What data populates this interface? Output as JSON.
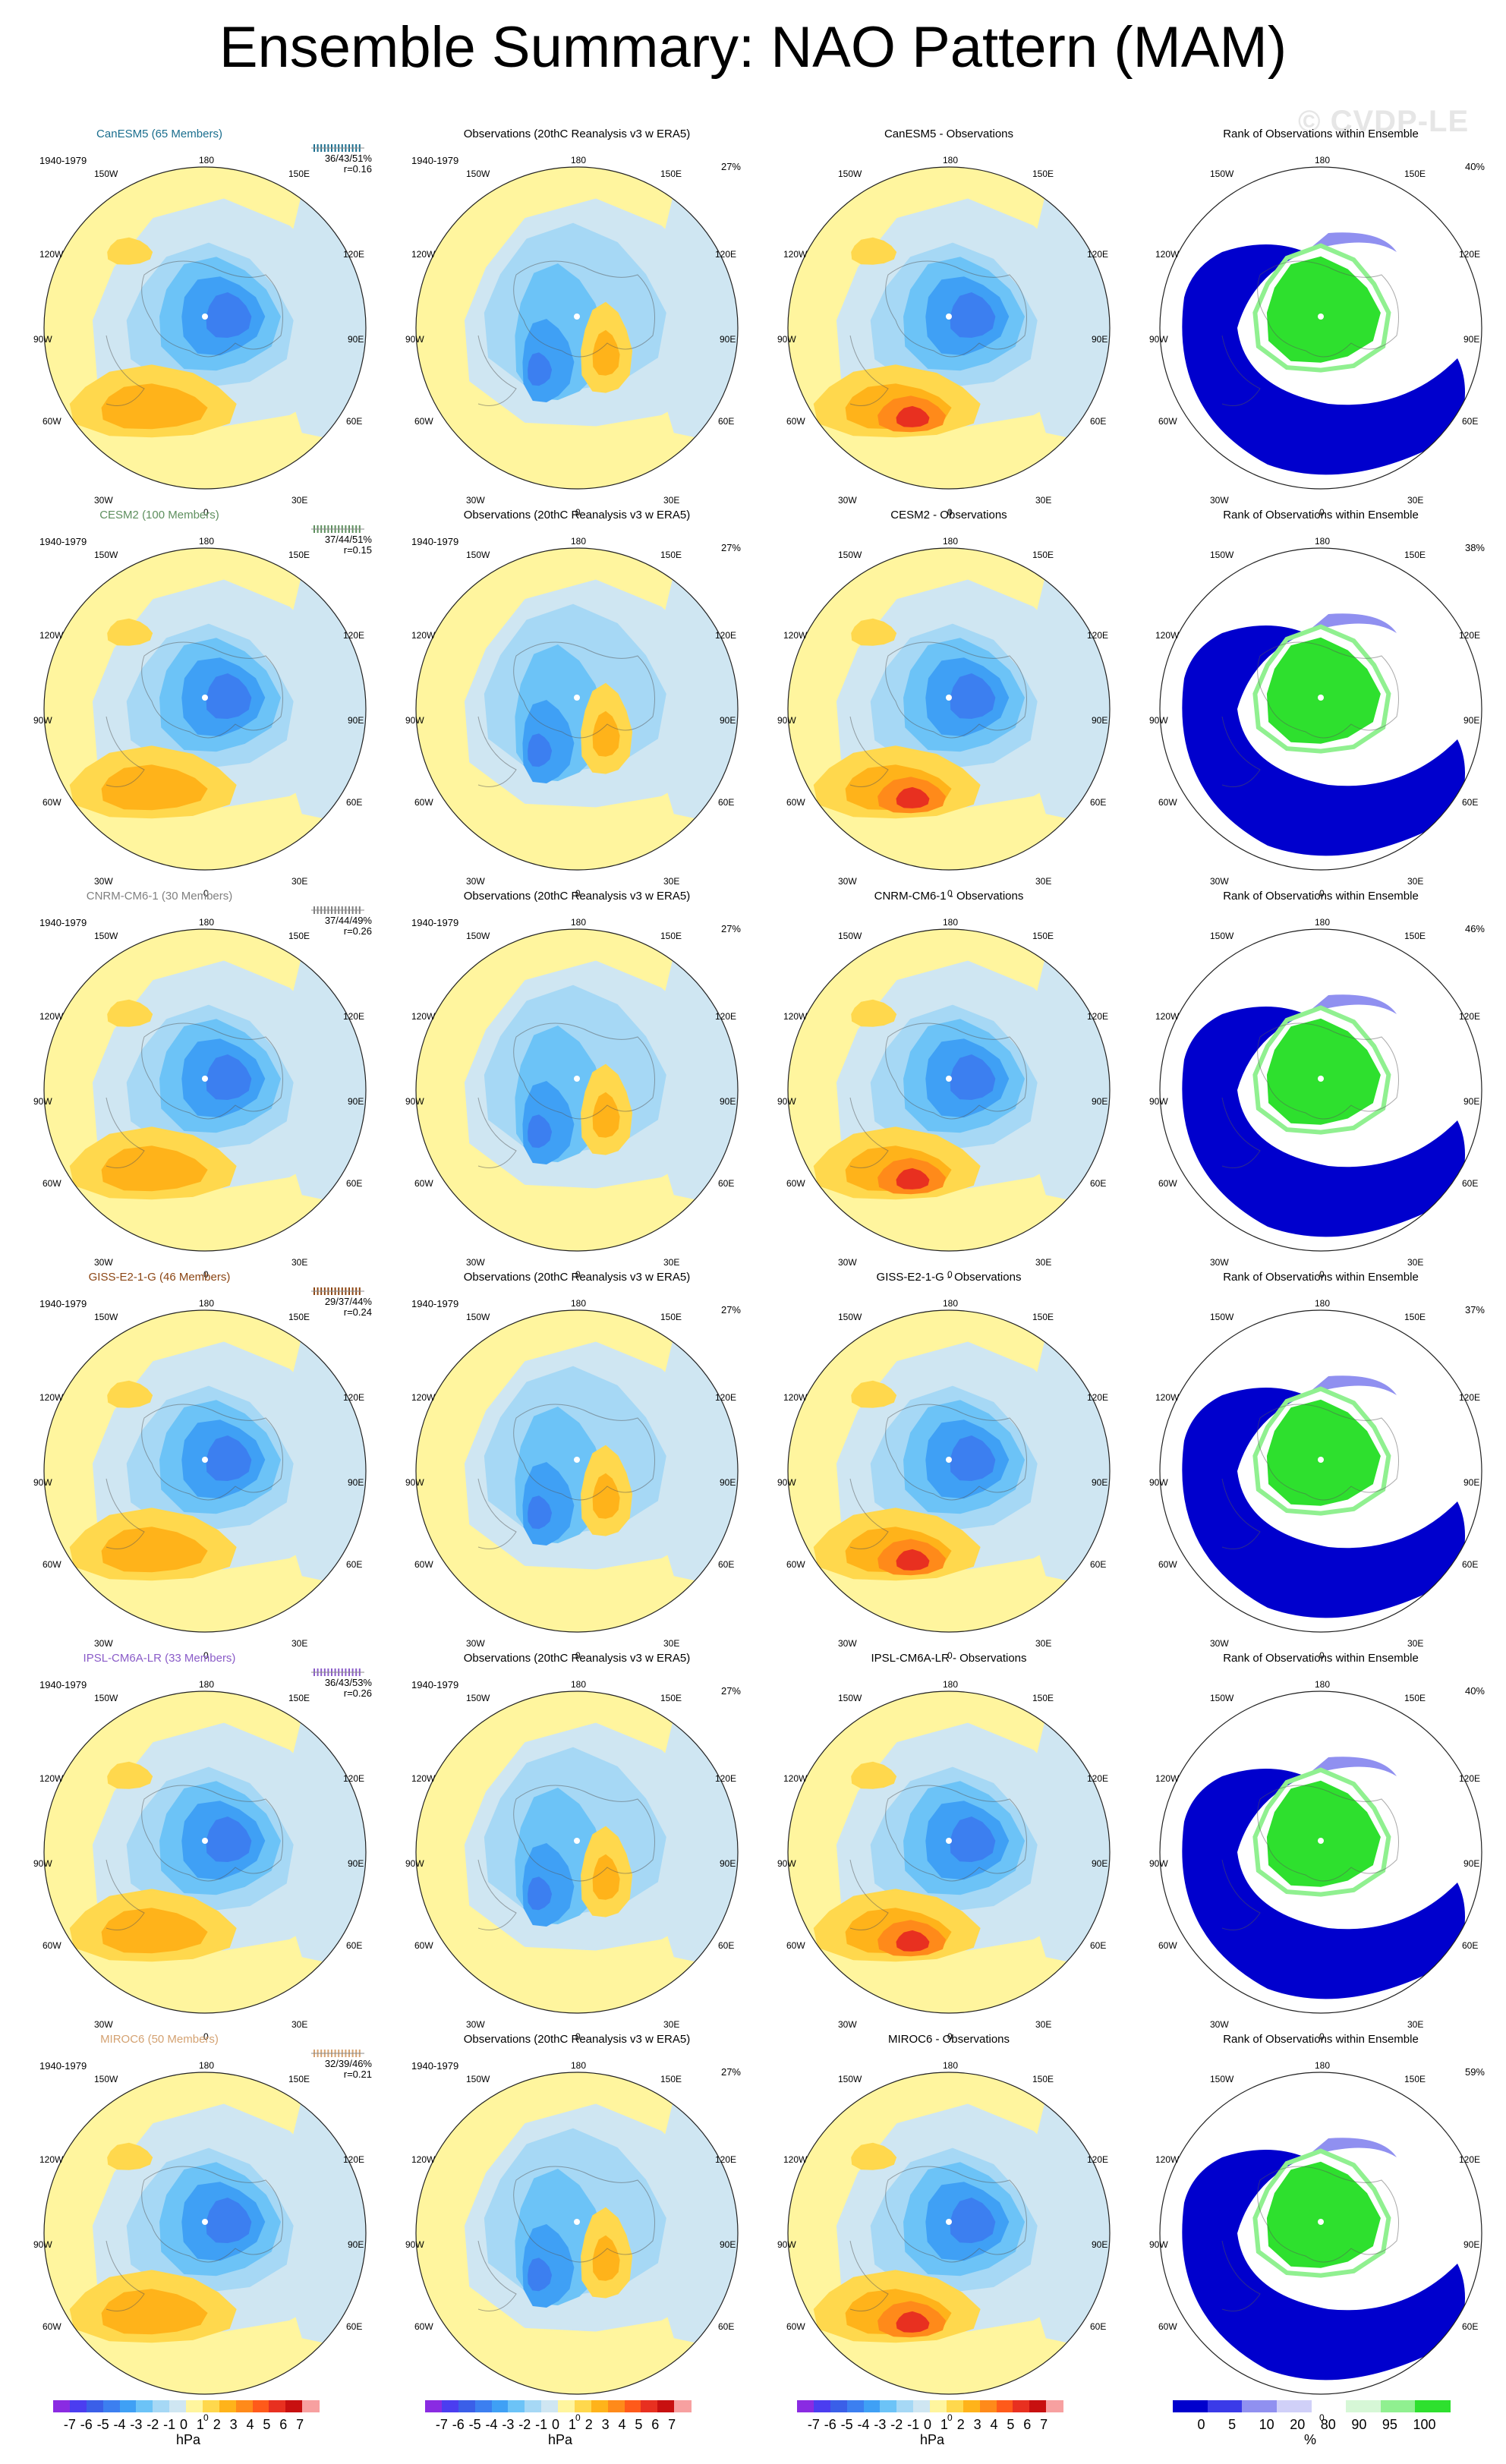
{
  "title": "Ensemble Summary: NAO Pattern (MAM)",
  "watermark": "© CVDP-LE",
  "common": {
    "period": "1940-1979",
    "obs_title": "Observations (20thC Reanalysis v3 w ERA5)",
    "rank_title": "Rank of Observations within Ensemble",
    "obs_pct": "27%"
  },
  "rows": [
    {
      "model_title": "CanESM5 (65 Members)",
      "diff_title": "CanESM5 - Observations",
      "stats1": "36/43/51%",
      "stats2": "r=0.16",
      "rank_pct": "40%",
      "color": "#1a6e8e"
    },
    {
      "model_title": "CESM2 (100 Members)",
      "diff_title": "CESM2 - Observations",
      "stats1": "37/44/51%",
      "stats2": "r=0.15",
      "rank_pct": "38%",
      "color": "#5e8f5e"
    },
    {
      "model_title": "CNRM-CM6-1 (30 Members)",
      "diff_title": "CNRM-CM6-1 - Observations",
      "stats1": "37/44/49%",
      "stats2": "r=0.26",
      "rank_pct": "46%",
      "color": "#808080"
    },
    {
      "model_title": "GISS-E2-1-G (46 Members)",
      "diff_title": "GISS-E2-1-G - Observations",
      "stats1": "29/37/44%",
      "stats2": "r=0.24",
      "rank_pct": "37%",
      "color": "#8b4513"
    },
    {
      "model_title": "IPSL-CM6A-LR (33 Members)",
      "diff_title": "IPSL-CM6A-LR - Observations",
      "stats1": "36/43/53%",
      "stats2": "r=0.26",
      "rank_pct": "40%",
      "color": "#8a5cc8"
    },
    {
      "model_title": "MIROC6 (50 Members)",
      "diff_title": "MIROC6 - Observations",
      "stats1": "32/39/46%",
      "stats2": "r=0.21",
      "rank_pct": "59%",
      "color": "#d4a272"
    }
  ],
  "lon_labels": {
    "top": "180",
    "bottom": "0",
    "left": "90W",
    "right": "90E",
    "tl1": "150W",
    "tr1": "150E",
    "tl2": "120W",
    "tr2": "120E",
    "bl1": "60W",
    "br1": "60E",
    "bl2": "30W",
    "br2": "30E"
  },
  "colorbar_hpa": {
    "labels": [
      "-7",
      "-6",
      "-5",
      "-4",
      "-3",
      "-2",
      "-1",
      "0",
      "1",
      "2",
      "3",
      "4",
      "5",
      "6",
      "7"
    ],
    "unit": "hPa",
    "colors": [
      "#8a2be2",
      "#4b3df0",
      "#3a5fe8",
      "#3c7ff0",
      "#3fa0f5",
      "#6cc3f7",
      "#a6d8f5",
      "#cfe6f2",
      "#fff59e",
      "#ffd84d",
      "#ffb31a",
      "#ff8a1a",
      "#ff5a1a",
      "#e83020",
      "#c81010",
      "#f7a0a0"
    ]
  },
  "colorbar_rank": {
    "labels": [
      "0",
      "5",
      "10",
      "20",
      "80",
      "90",
      "95",
      "100"
    ],
    "unit": "%",
    "colors": [
      "#0000cd",
      "#3a3ae8",
      "#9090f0",
      "#d0d0f8",
      "#ffffff",
      "#d6f7d6",
      "#90f090",
      "#2ee02e"
    ]
  }
}
